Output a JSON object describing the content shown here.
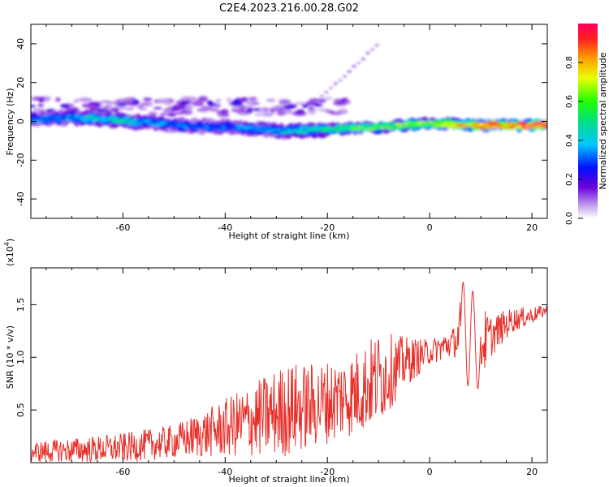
{
  "title": "C2E4.2023.216.00.28.G02",
  "chart_data": [
    {
      "type": "heatmap",
      "xlabel": "Height of straight line (km)",
      "ylabel": "Frequency (Hz)",
      "xlim": [
        -78,
        23
      ],
      "ylim": [
        -50,
        50
      ],
      "xticks": [
        -60,
        -40,
        -20,
        0,
        20
      ],
      "yticks": [
        -40,
        -20,
        0,
        20,
        40
      ],
      "colorbar": {
        "label": "Normalized spectral amplitude",
        "range": [
          0,
          1
        ],
        "ticks": [
          0.0,
          0.2,
          0.4,
          0.6,
          0.8
        ],
        "tick_labels": [
          "0.0",
          "0.2",
          "0.4",
          "0.6",
          "0.8"
        ]
      },
      "ridge": [
        {
          "x": -78,
          "f": 1,
          "amp": 0.3
        },
        {
          "x": -70,
          "f": 2,
          "amp": 0.35
        },
        {
          "x": -60,
          "f": 0.5,
          "amp": 0.4
        },
        {
          "x": -50,
          "f": -2,
          "amp": 0.3
        },
        {
          "x": -40,
          "f": -3,
          "amp": 0.3
        },
        {
          "x": -30,
          "f": -5,
          "amp": 0.35
        },
        {
          "x": -20,
          "f": -4,
          "amp": 0.45
        },
        {
          "x": -10,
          "f": -3,
          "amp": 0.6
        },
        {
          "x": 0,
          "f": -1,
          "amp": 0.6
        },
        {
          "x": 10,
          "f": -2,
          "amp": 0.85
        },
        {
          "x": 20,
          "f": -2,
          "amp": 0.95
        }
      ]
    },
    {
      "type": "line",
      "xlabel": "Height of straight line (km)",
      "ylabel": "SNR (10 * v/v)",
      "yscale_label": "(x10",
      "yscale_exp": "4",
      "yscale_close": ")",
      "xlim": [
        -78,
        23
      ],
      "ylim": [
        0,
        1.85
      ],
      "xticks": [
        -60,
        -40,
        -20,
        0,
        20
      ],
      "yticks": [
        0.5,
        1.0,
        1.5
      ],
      "ytick_labels": [
        "0.5",
        "1.0",
        "1.5"
      ],
      "color": "#e8302a",
      "envelope": [
        {
          "x": -78,
          "base": 0.1,
          "amp": 0.1
        },
        {
          "x": -60,
          "base": 0.14,
          "amp": 0.14
        },
        {
          "x": -50,
          "base": 0.2,
          "amp": 0.16
        },
        {
          "x": -42,
          "base": 0.3,
          "amp": 0.25
        },
        {
          "x": -35,
          "base": 0.4,
          "amp": 0.35
        },
        {
          "x": -28,
          "base": 0.5,
          "amp": 0.45
        },
        {
          "x": -22,
          "base": 0.55,
          "amp": 0.4
        },
        {
          "x": -15,
          "base": 0.65,
          "amp": 0.4
        },
        {
          "x": -10,
          "base": 0.8,
          "amp": 0.45
        },
        {
          "x": -5,
          "base": 0.95,
          "amp": 0.25
        },
        {
          "x": 0,
          "base": 1.05,
          "amp": 0.12
        },
        {
          "x": 5,
          "base": 1.15,
          "amp": 0.15
        },
        {
          "x": 7,
          "base": 1.3,
          "amp": 0.55
        },
        {
          "x": 9,
          "base": 1.1,
          "amp": 0.45
        },
        {
          "x": 12,
          "base": 1.2,
          "amp": 0.2
        },
        {
          "x": 16,
          "base": 1.35,
          "amp": 0.12
        },
        {
          "x": 20,
          "base": 1.4,
          "amp": 0.08
        },
        {
          "x": 23,
          "base": 1.45,
          "amp": 0.05
        }
      ]
    }
  ]
}
